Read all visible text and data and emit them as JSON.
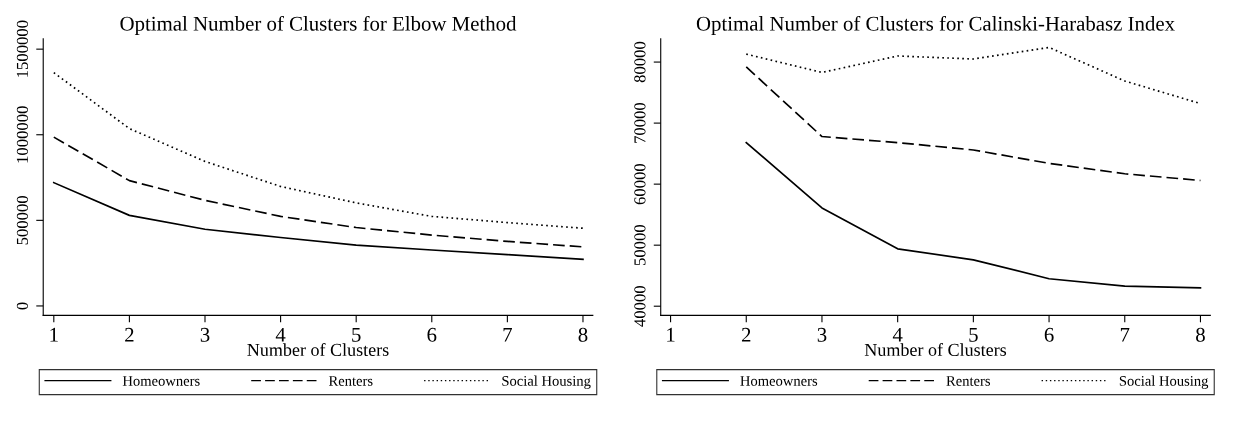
{
  "chart_data": [
    {
      "type": "line",
      "title": "Optimal Number of Clusters for Elbow Method",
      "xlabel": "Number of Clusters",
      "x": [
        1,
        2,
        3,
        4,
        5,
        6,
        7,
        8
      ],
      "xlim": [
        0.86,
        8.13
      ],
      "xticks": [
        1,
        2,
        3,
        4,
        5,
        6,
        7,
        8
      ],
      "ylim": [
        -55000,
        1560000
      ],
      "yticks": [
        0,
        500000,
        1000000,
        1500000
      ],
      "grid": false,
      "legend": "bottom",
      "marker": "none",
      "series": [
        {
          "name": "Homeowners",
          "color": "#000000",
          "line_style": "solid",
          "values": [
            720000,
            529000,
            448000,
            400000,
            355000,
            327000,
            300000,
            272000
          ]
        },
        {
          "name": "Renters",
          "color": "#000000",
          "line_style": "dashed",
          "values": [
            986000,
            732000,
            617000,
            523000,
            458000,
            414000,
            377000,
            345000
          ]
        },
        {
          "name": "Social Housing",
          "color": "#000000",
          "line_style": "dotted",
          "values": [
            1363000,
            1036000,
            844000,
            698000,
            602000,
            523000,
            487000,
            454000
          ]
        }
      ]
    },
    {
      "type": "line",
      "title": "Optimal Number of Clusters for Calinski-Harabasz Index",
      "xlabel": "Number of Clusters",
      "x": [
        2,
        3,
        4,
        5,
        6,
        7,
        8
      ],
      "xlim": [
        0.87,
        8.13
      ],
      "xticks": [
        1,
        2,
        3,
        4,
        5,
        6,
        7,
        8
      ],
      "ylim": [
        38500,
        83800
      ],
      "yticks": [
        40000,
        50000,
        60000,
        70000,
        80000
      ],
      "grid": false,
      "legend": "bottom",
      "marker": "none",
      "series": [
        {
          "name": "Homeowners",
          "color": "#000000",
          "line_style": "solid",
          "values": [
            66800,
            56100,
            49400,
            47600,
            44500,
            43300,
            43000
          ]
        },
        {
          "name": "Renters",
          "color": "#000000",
          "line_style": "dashed",
          "values": [
            79200,
            67800,
            66800,
            65600,
            63400,
            61700,
            60600
          ]
        },
        {
          "name": "Social Housing",
          "color": "#000000",
          "line_style": "dotted",
          "values": [
            81300,
            78300,
            81000,
            80500,
            82400,
            76900,
            73200
          ]
        }
      ]
    }
  ]
}
